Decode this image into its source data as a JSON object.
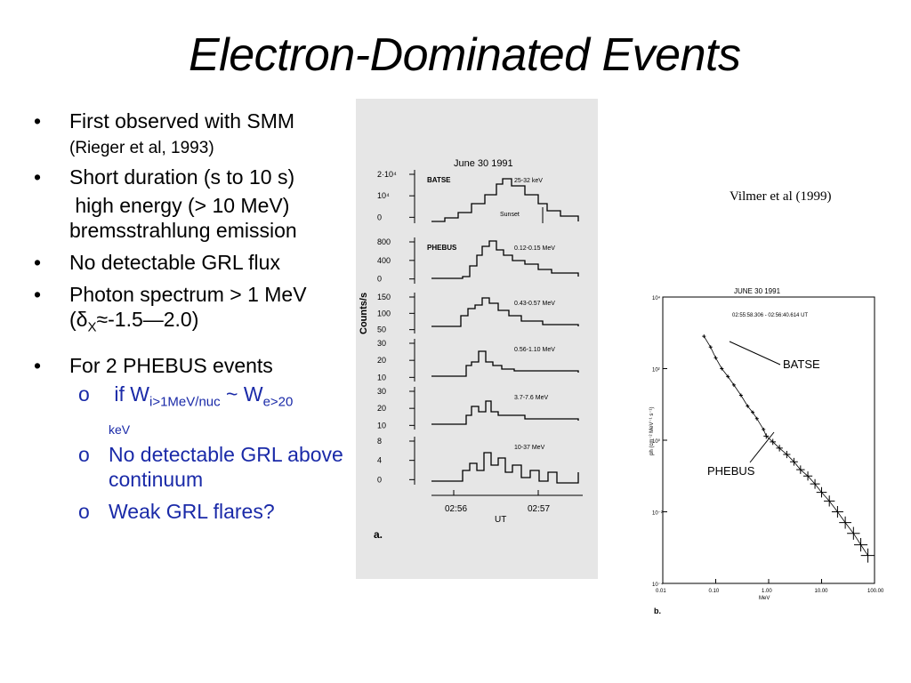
{
  "slide": {
    "title": "Electron-Dominated Events",
    "credit": "Vilmer et al (1999)",
    "bullets": [
      {
        "text": "First observed with SMM",
        "note": "(Rieger et al, 1993)"
      },
      {
        "text": "Short duration (s to 10 s)"
      },
      {
        "text": " high energy (> 10 MeV) bremsstrahlung emission"
      },
      {
        "text": "No detectable GRL flux"
      },
      {
        "text_a": "Photon spectrum > 1 MeV  (",
        "symbol": "δ",
        "sub": "X",
        "text_b": "≈-1.5—2.0)"
      },
      {
        "text": "For 2 PHEBUS events"
      }
    ],
    "subbullets": [
      {
        "marker": "o",
        "pre": " if W",
        "sub1": "i>1MeV/nuc",
        "mid": " ~ W",
        "sub2": "e>20",
        "tail": "keV"
      },
      {
        "marker": "o",
        "text": "No detectable GRL above continuum"
      },
      {
        "marker": "o",
        "text": "Weak GRL flares?"
      }
    ]
  },
  "figure_a": {
    "date": "June 30 1991",
    "ylabel": "Counts/s",
    "xlabel": "UT",
    "xticks": [
      "02:56",
      "02:57"
    ],
    "panel_letter": "a.",
    "panels": [
      {
        "instrument": "BATSE",
        "band": "25-32 keV",
        "ticks": [
          "2·10⁴",
          "10⁴",
          "0"
        ],
        "annotation": "Sunset"
      },
      {
        "instrument": "PHEBUS",
        "band": "0.12-0.15 MeV",
        "ticks": [
          "800",
          "400",
          "0"
        ]
      },
      {
        "band": "0.43-0.57 MeV",
        "ticks": [
          "150",
          "100",
          "50"
        ]
      },
      {
        "band": "0.56-1.10 MeV",
        "ticks": [
          "30",
          "20",
          "10"
        ]
      },
      {
        "band": "3.7-7.6 MeV",
        "ticks": [
          "30",
          "20",
          "10"
        ]
      },
      {
        "band": "10-37 MeV",
        "ticks": [
          "8",
          "4",
          "0"
        ]
      }
    ]
  },
  "figure_b": {
    "date": "JUNE 30 1991",
    "interval": "02:55:58.306 - 02:56:40.614 UT",
    "xlabel": "MeV",
    "ylabel": "ph (cm⁻² MeV⁻¹ s⁻¹)",
    "xticks": [
      "0.01",
      "0.10",
      "1.00",
      "10.00",
      "100.00"
    ],
    "yticks": [
      "10⁴",
      "10²",
      "10⁰",
      "10⁻²",
      "10⁻⁴"
    ],
    "label_batse": "BATSE",
    "label_phebus": "PHEBUS",
    "panel_letter": "b."
  },
  "chart_data": {
    "type": "scatter",
    "title": "JUNE 30 1991",
    "xlabel": "MeV",
    "ylabel": "ph (cm⁻² MeV⁻¹ s⁻¹)",
    "xscale": "log",
    "yscale": "log",
    "xlim": [
      0.01,
      100
    ],
    "ylim": [
      0.0001,
      10000
    ],
    "series": [
      {
        "name": "BATSE",
        "x": [
          0.06,
          0.08,
          0.1,
          0.13,
          0.17,
          0.22,
          0.3,
          0.4,
          0.5,
          0.6,
          0.8
        ],
        "y": [
          800,
          400,
          200,
          100,
          60,
          35,
          18,
          9,
          6,
          4,
          2
        ]
      },
      {
        "name": "PHEBUS",
        "x": [
          0.9,
          1.2,
          1.6,
          2.2,
          3,
          4,
          5.5,
          7.5,
          10,
          14,
          20,
          28,
          40,
          55,
          75
        ],
        "y": [
          1.3,
          0.9,
          0.6,
          0.4,
          0.25,
          0.15,
          0.1,
          0.06,
          0.035,
          0.02,
          0.01,
          0.005,
          0.0025,
          0.0012,
          0.0006
        ]
      }
    ]
  }
}
